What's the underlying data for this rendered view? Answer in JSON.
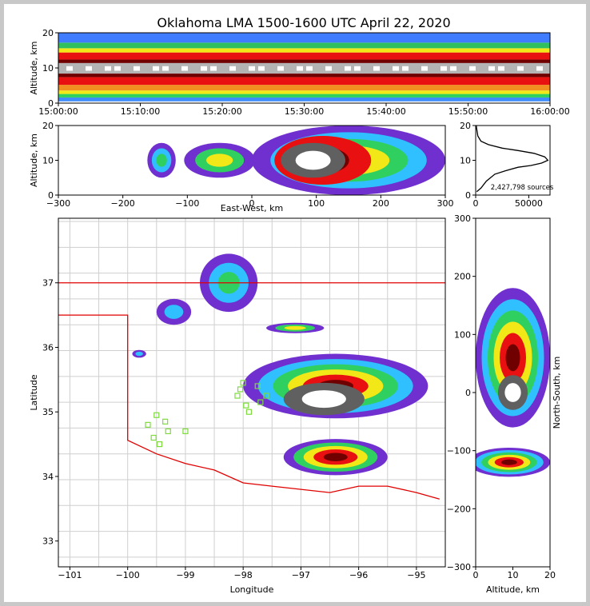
{
  "figure": {
    "title": "Oklahoma LMA 1500-1600 UTC April 22, 2020"
  },
  "chart_data": [
    {
      "panel": "altitude-vs-time",
      "type": "heatmap",
      "ylabel": "Altitude, km",
      "ylim": [
        0,
        20
      ],
      "yticks": [
        "0",
        "10",
        "20"
      ],
      "xticks": [
        "15:00:00",
        "15:10:00",
        "15:20:00",
        "15:30:00",
        "15:40:00",
        "15:50:00",
        "16:00:00"
      ],
      "bands": [
        {
          "alt": [
            0.5,
            1.6
          ],
          "color": "#3f8cff"
        },
        {
          "alt": [
            1.6,
            2.6
          ],
          "color": "#30d060"
        },
        {
          "alt": [
            2.6,
            3.6
          ],
          "color": "#f2e818"
        },
        {
          "alt": [
            3.6,
            5.2
          ],
          "color": "#f09020"
        },
        {
          "alt": [
            5.2,
            7.4
          ],
          "color": "#e81010"
        },
        {
          "alt": [
            7.4,
            8.4
          ],
          "color": "#700000"
        },
        {
          "alt": [
            8.4,
            11.4
          ],
          "color": "#b4b4b4"
        },
        {
          "alt": [
            11.4,
            12.4
          ],
          "color": "#700000"
        },
        {
          "alt": [
            12.4,
            14.4
          ],
          "color": "#e81010"
        },
        {
          "alt": [
            14.4,
            15.6
          ],
          "color": "#f2e818"
        },
        {
          "alt": [
            15.6,
            17.2
          ],
          "color": "#30c060"
        },
        {
          "alt": [
            17.2,
            20.0
          ],
          "color": "#3f7cff"
        }
      ]
    },
    {
      "panel": "altitude-vs-east-west",
      "type": "heatmap",
      "xlabel": "East-West, km",
      "ylabel": "Altitude, km",
      "xlim": [
        -300,
        300
      ],
      "ylim": [
        0,
        20
      ],
      "xticks": [
        "−300",
        "−200",
        "−100",
        "0",
        "100",
        "200",
        "300"
      ],
      "yticks": [
        "0",
        "10",
        "20"
      ],
      "blobs": [
        {
          "x": -140,
          "y": 10,
          "rx": 22,
          "ry": 5,
          "colors": [
            "#7030d0",
            "#30c0ff",
            "#30d060"
          ]
        },
        {
          "x": -50,
          "y": 10,
          "rx": 55,
          "ry": 5,
          "colors": [
            "#7030d0",
            "#30d060",
            "#f2e818"
          ]
        },
        {
          "x": 150,
          "y": 10,
          "rx": 150,
          "ry": 10,
          "colors": [
            "#7030d0",
            "#30c0ff",
            "#30d060",
            "#f2e818",
            "#e81010"
          ]
        },
        {
          "x": 110,
          "y": 10,
          "rx": 75,
          "ry": 7,
          "colors": [
            "#e81010",
            "#700000"
          ]
        },
        {
          "x": 95,
          "y": 10,
          "rx": 50,
          "ry": 5,
          "colors": [
            "#606060",
            "#ffffff"
          ]
        }
      ]
    },
    {
      "panel": "altitude-histogram",
      "type": "line",
      "xticks": [
        "0",
        "50000"
      ],
      "yticks": [
        "0",
        "10",
        "20"
      ],
      "xlim": [
        0,
        70000
      ],
      "ylim": [
        0,
        20
      ],
      "x": [
        1000,
        5000,
        10000,
        18000,
        28000,
        40000,
        52000,
        62000,
        68000,
        65000,
        55000,
        40000,
        25000,
        12000,
        5000,
        2000,
        1000,
        500
      ],
      "y": [
        1,
        2,
        4,
        6,
        7,
        8,
        8.5,
        9.2,
        10,
        11,
        12,
        12.8,
        13.5,
        14.5,
        15.5,
        17,
        19,
        20
      ],
      "annotation": "2,427,798 sources"
    },
    {
      "panel": "plan-view",
      "type": "heatmap",
      "xlabel": "Longitude",
      "ylabel": "Latitude",
      "xlim": [
        -101.2,
        -94.5
      ],
      "ylim": [
        32.6,
        38.0
      ],
      "xticks": [
        "−101",
        "−100",
        "−99",
        "−98",
        "−97",
        "−96",
        "−95"
      ],
      "yticks": [
        "33",
        "34",
        "35",
        "36",
        "37"
      ],
      "state_border": {
        "lon": [
          -101.2,
          -100.0,
          -100.0,
          -99.5,
          -99.0,
          -98.5,
          -98.0,
          -97.5,
          -97.0,
          -96.5,
          -96.0,
          -95.5,
          -95.0,
          -94.6
        ],
        "lat": [
          36.5,
          36.5,
          34.56,
          34.35,
          34.2,
          34.1,
          33.9,
          33.85,
          33.8,
          33.75,
          33.85,
          33.85,
          33.75,
          33.65
        ]
      },
      "northern_border_lat": 37.0,
      "stations": [
        {
          "lon": -99.65,
          "lat": 34.8
        },
        {
          "lon": -99.5,
          "lat": 34.95
        },
        {
          "lon": -99.35,
          "lat": 34.85
        },
        {
          "lon": -99.3,
          "lat": 34.7
        },
        {
          "lon": -99.55,
          "lat": 34.6
        },
        {
          "lon": -99.45,
          "lat": 34.5
        },
        {
          "lon": -99.0,
          "lat": 34.7
        },
        {
          "lon": -98.0,
          "lat": 35.45
        },
        {
          "lon": -98.05,
          "lat": 35.35
        },
        {
          "lon": -98.1,
          "lat": 35.25
        },
        {
          "lon": -97.95,
          "lat": 35.1
        },
        {
          "lon": -97.9,
          "lat": 35.0
        },
        {
          "lon": -97.7,
          "lat": 35.15
        },
        {
          "lon": -97.6,
          "lat": 35.25
        },
        {
          "lon": -97.75,
          "lat": 35.4
        }
      ],
      "blobs": [
        {
          "lon": -98.25,
          "lat": 37.0,
          "rx": 0.5,
          "ry": 0.45,
          "colors": [
            "#7030d0",
            "#30c0ff",
            "#30d060"
          ]
        },
        {
          "lon": -99.2,
          "lat": 36.55,
          "rx": 0.3,
          "ry": 0.2,
          "colors": [
            "#7030d0",
            "#30c0ff"
          ]
        },
        {
          "lon": -99.8,
          "lat": 35.9,
          "rx": 0.12,
          "ry": 0.06,
          "colors": [
            "#7030d0",
            "#30c0ff"
          ]
        },
        {
          "lon": -96.4,
          "lat": 35.4,
          "rx": 1.6,
          "ry": 0.5,
          "colors": [
            "#7030d0",
            "#30c0ff",
            "#30d060",
            "#f2e818",
            "#e81010",
            "#700000"
          ]
        },
        {
          "lon": -96.6,
          "lat": 35.2,
          "rx": 0.7,
          "ry": 0.25,
          "colors": [
            "#606060",
            "#ffffff"
          ]
        },
        {
          "lon": -96.4,
          "lat": 34.3,
          "rx": 0.9,
          "ry": 0.28,
          "colors": [
            "#7030d0",
            "#30d060",
            "#f2e818",
            "#e81010",
            "#700000"
          ]
        },
        {
          "lon": -97.1,
          "lat": 36.3,
          "rx": 0.5,
          "ry": 0.08,
          "colors": [
            "#7030d0",
            "#30d060",
            "#f2e818"
          ]
        }
      ]
    },
    {
      "panel": "north-south-vs-altitude",
      "type": "heatmap",
      "xlabel": "Altitude, km",
      "ylabel": "North-South, km",
      "xlim": [
        0,
        20
      ],
      "ylim": [
        -300,
        300
      ],
      "xticks": [
        "0",
        "10",
        "20"
      ],
      "yticks": [
        "300",
        "200",
        "100",
        "0",
        "−100",
        "−200",
        "−300"
      ],
      "blobs": [
        {
          "x": 10,
          "y": 60,
          "rx": 10,
          "ry": 120,
          "colors": [
            "#7030d0",
            "#30c0ff",
            "#30d060",
            "#f2e818",
            "#e81010",
            "#700000"
          ]
        },
        {
          "x": 10,
          "y": 0,
          "rx": 4,
          "ry": 30,
          "colors": [
            "#606060",
            "#ffffff"
          ]
        },
        {
          "x": 9,
          "y": -120,
          "rx": 11,
          "ry": 25,
          "colors": [
            "#7030d0",
            "#30c0ff",
            "#30d060",
            "#f2e818",
            "#e81010",
            "#700000"
          ]
        }
      ]
    }
  ]
}
